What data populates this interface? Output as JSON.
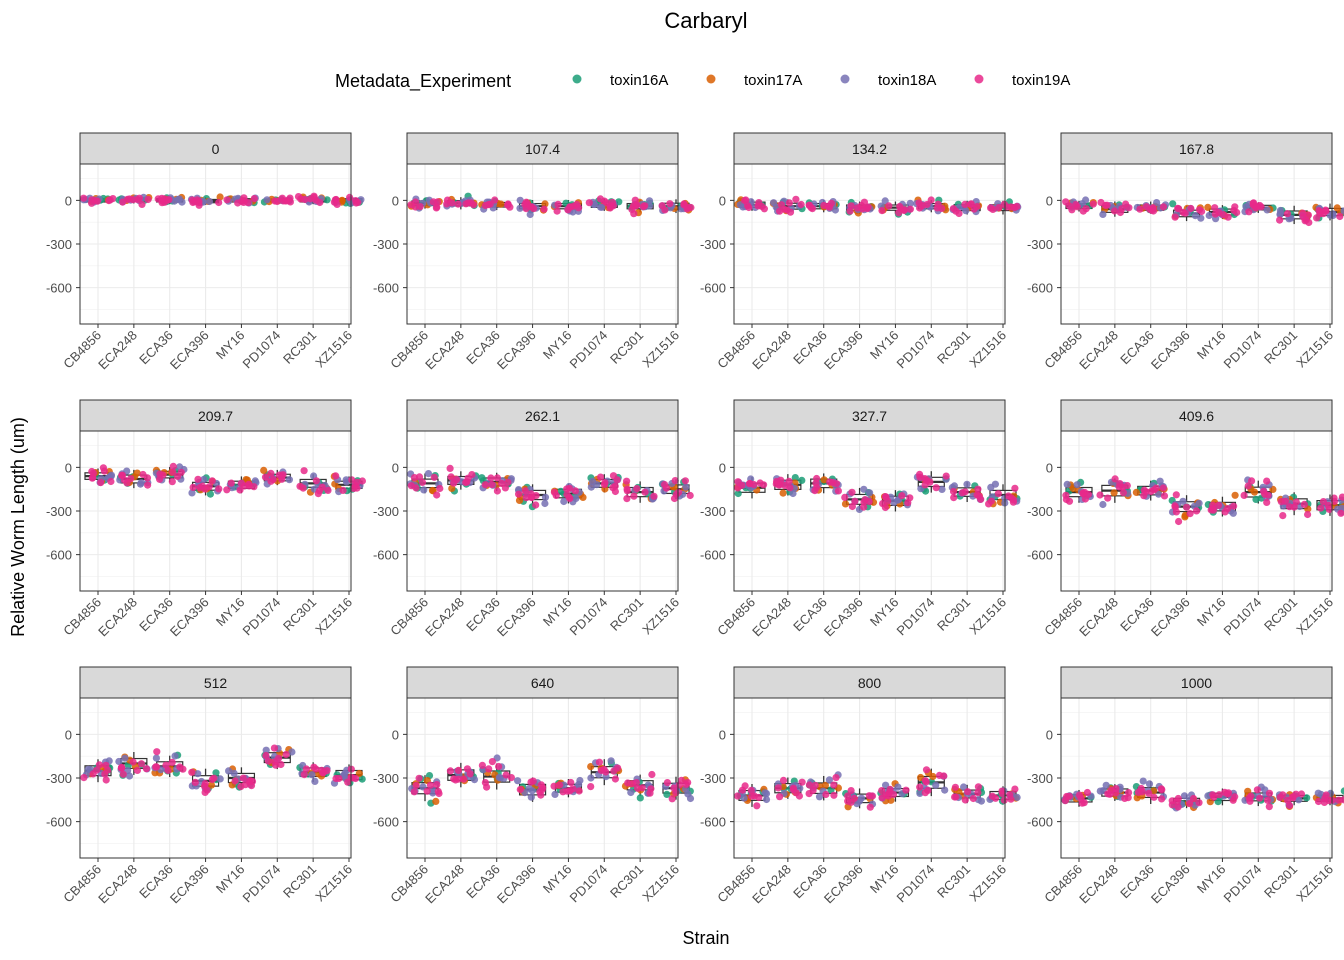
{
  "chart_data": {
    "type": "scatter",
    "subtype": "faceted jitter + boxplot",
    "title": "Carbaryl",
    "xlabel": "Strain",
    "ylabel": "Relative Worm Length (um)",
    "legend": {
      "title": "Metadata_Experiment",
      "placement": "top",
      "entries": [
        "toxin16A",
        "toxin17A",
        "toxin18A",
        "toxin19A"
      ],
      "colors": [
        "#1b9e77",
        "#d95f02",
        "#7570b3",
        "#e7298a"
      ]
    },
    "strains": [
      "CB4856",
      "ECA248",
      "ECA36",
      "ECA396",
      "MY16",
      "PD1074",
      "RC301",
      "XZ1516"
    ],
    "ylim": [
      -850,
      250
    ],
    "yticks": [
      0,
      -300,
      -600
    ],
    "ytick_labels": [
      "0",
      "-300",
      "-600"
    ],
    "grid": true,
    "facets": [
      {
        "label": "0",
        "medians": [
          0,
          5,
          0,
          -5,
          0,
          0,
          0,
          0
        ],
        "spread": [
          25,
          25,
          25,
          25,
          25,
          20,
          25,
          25
        ]
      },
      {
        "label": "107.4",
        "medians": [
          -20,
          -20,
          -30,
          -40,
          -40,
          -30,
          -40,
          -40
        ],
        "spread": [
          35,
          40,
          35,
          40,
          40,
          40,
          40,
          45
        ]
      },
      {
        "label": "134.2",
        "medians": [
          -30,
          -40,
          -40,
          -50,
          -50,
          -40,
          -50,
          -50
        ],
        "spread": [
          40,
          45,
          40,
          40,
          40,
          40,
          45,
          45
        ]
      },
      {
        "label": "167.8",
        "medians": [
          -40,
          -60,
          -50,
          -90,
          -80,
          -50,
          -100,
          -80
        ],
        "spread": [
          35,
          50,
          40,
          50,
          45,
          35,
          60,
          55
        ]
      },
      {
        "label": "209.7",
        "medians": [
          -60,
          -80,
          -50,
          -130,
          -120,
          -70,
          -110,
          -120
        ],
        "spread": [
          50,
          60,
          50,
          60,
          55,
          50,
          60,
          55
        ]
      },
      {
        "label": "262.1",
        "medians": [
          -110,
          -90,
          -100,
          -190,
          -180,
          -110,
          -170,
          -150
        ],
        "spread": [
          65,
          60,
          60,
          70,
          65,
          60,
          70,
          65
        ]
      },
      {
        "label": "327.7",
        "medians": [
          -140,
          -120,
          -110,
          -220,
          -230,
          -100,
          -170,
          -190
        ],
        "spread": [
          70,
          70,
          65,
          75,
          70,
          70,
          65,
          70
        ]
      },
      {
        "label": "409.6",
        "medians": [
          -170,
          -160,
          -160,
          -270,
          -270,
          -170,
          -250,
          -260
        ],
        "spread": [
          70,
          80,
          65,
          75,
          65,
          75,
          75,
          70
        ]
      },
      {
        "label": "512",
        "medians": [
          -250,
          -200,
          -220,
          -320,
          -300,
          -160,
          -260,
          -280
        ],
        "spread": [
          75,
          75,
          70,
          80,
          70,
          75,
          65,
          70
        ]
      },
      {
        "label": "640",
        "medians": [
          -370,
          -280,
          -290,
          -380,
          -370,
          -260,
          -350,
          -370
        ],
        "spread": [
          85,
          80,
          85,
          80,
          60,
          85,
          70,
          75
        ]
      },
      {
        "label": "800",
        "medians": [
          -420,
          -370,
          -370,
          -440,
          -400,
          -330,
          -410,
          -420
        ],
        "spread": [
          75,
          70,
          80,
          65,
          60,
          90,
          60,
          60
        ]
      },
      {
        "label": "1000",
        "medians": [
          -440,
          -400,
          -400,
          -460,
          -430,
          -430,
          -440,
          -440
        ],
        "spread": [
          55,
          55,
          75,
          45,
          55,
          60,
          45,
          45
        ]
      }
    ]
  }
}
